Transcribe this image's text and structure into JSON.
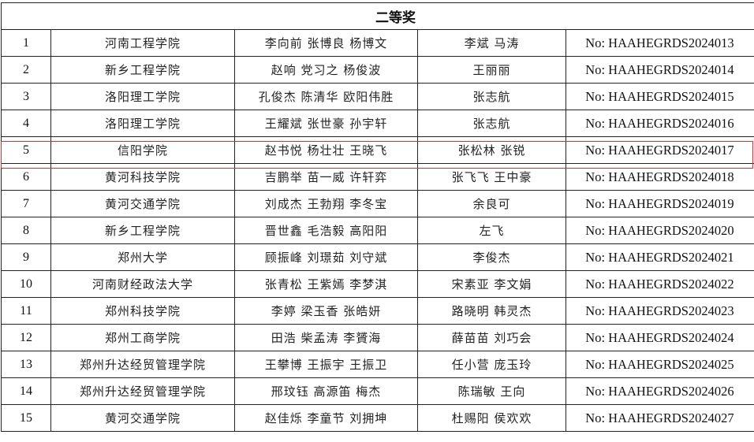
{
  "section_title": "二等奖",
  "highlight_color": "#e03030",
  "rows": [
    {
      "no": "1",
      "school": "河南工程学院",
      "students": "李向前 张博良 杨博文",
      "advisors": "李斌 马涛",
      "cert": "No: HAAHEGRDS2024013"
    },
    {
      "no": "2",
      "school": "新乡工程学院",
      "students": "赵响 党习之 杨俊波",
      "advisors": "王丽丽",
      "cert": "No: HAAHEGRDS2024014"
    },
    {
      "no": "3",
      "school": "洛阳理工学院",
      "students": "孔俊杰 陈清华 欧阳伟胜",
      "advisors": "张志航",
      "cert": "No: HAAHEGRDS2024015"
    },
    {
      "no": "4",
      "school": "洛阳理工学院",
      "students": "王耀斌 张世豪 孙宇轩",
      "advisors": "张志航",
      "cert": "No: HAAHEGRDS2024016"
    },
    {
      "no": "5",
      "school": "信阳学院",
      "students": "赵书悦 杨壮壮 王晓飞",
      "advisors": "张松林 张锐",
      "cert": "No: HAAHEGRDS2024017"
    },
    {
      "no": "6",
      "school": "黄河科技学院",
      "students": "吉鹏举 苗一威 许轩弈",
      "advisors": "张飞飞 王中豪",
      "cert": "No: HAAHEGRDS2024018"
    },
    {
      "no": "7",
      "school": "黄河交通学院",
      "students": "刘成杰 王勃翔 李冬宝",
      "advisors": "余良可",
      "cert": "No: HAAHEGRDS2024019"
    },
    {
      "no": "8",
      "school": "新乡工程学院",
      "students": "晋世鑫 毛浩毅 高阳阳",
      "advisors": "左飞",
      "cert": "No: HAAHEGRDS2024020"
    },
    {
      "no": "9",
      "school": "郑州大学",
      "students": "顾振峰 刘璟茹 刘守斌",
      "advisors": "李俊杰",
      "cert": "No: HAAHEGRDS2024021"
    },
    {
      "no": "10",
      "school": "河南财经政法大学",
      "students": "张青松 王紫嫣 李梦淇",
      "advisors": "宋素亚 李文娟",
      "cert": "No: HAAHEGRDS2024022"
    },
    {
      "no": "11",
      "school": "郑州科技学院",
      "students": "李婷 梁玉香 张皓妍",
      "advisors": "路晓明 韩灵杰",
      "cert": "No: HAAHEGRDS2024023"
    },
    {
      "no": "12",
      "school": "郑州工商学院",
      "students": "田浩 柴孟涛 李贇海",
      "advisors": "薛苗苗 刘巧会",
      "cert": "No: HAAHEGRDS2024024"
    },
    {
      "no": "13",
      "school": "郑州升达经贸管理学院",
      "students": "王攀博 王振宇 王振卫",
      "advisors": "任小营 庞玉玲",
      "cert": "No: HAAHEGRDS2024025"
    },
    {
      "no": "14",
      "school": "郑州升达经贸管理学院",
      "students": "邢玟钰 高源笛 梅杰",
      "advisors": "陈瑞敏 王向",
      "cert": "No: HAAHEGRDS2024026"
    },
    {
      "no": "15",
      "school": "黄河交通学院",
      "students": "赵佳烁 李童节 刘拥坤",
      "advisors": "杜赐阳 侯欢欢",
      "cert": "No: HAAHEGRDS2024027"
    }
  ]
}
